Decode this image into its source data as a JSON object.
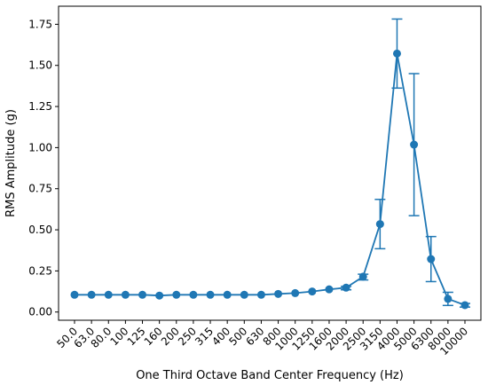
{
  "chart_data": {
    "type": "line",
    "title": "",
    "xlabel": "One Third Octave Band Center Frequency (Hz)",
    "ylabel": "RMS Amplitude (g)",
    "categories": [
      "50.0",
      "63.0",
      "80.0",
      "100",
      "125",
      "160",
      "200",
      "250",
      "315",
      "400",
      "500",
      "630",
      "800",
      "1000",
      "1250",
      "1600",
      "2000",
      "2500",
      "3150",
      "4000",
      "5000",
      "6300",
      "8000",
      "10000"
    ],
    "y_ticks": [
      "0.00",
      "0.25",
      "0.50",
      "0.75",
      "1.00",
      "1.25",
      "1.50",
      "1.75"
    ],
    "ylim": [
      -0.05,
      1.86
    ],
    "grid": false,
    "legend": "none",
    "color": "#1f77b4",
    "series": [
      {
        "values": [
          0.105,
          0.105,
          0.105,
          0.105,
          0.105,
          0.1,
          0.105,
          0.105,
          0.105,
          0.105,
          0.105,
          0.105,
          0.11,
          0.115,
          0.125,
          0.138,
          0.148,
          0.215,
          0.535,
          1.572,
          1.018,
          0.322,
          0.08,
          0.042
        ],
        "error_low": [
          0,
          0,
          0,
          0,
          0,
          0,
          0,
          0,
          0,
          0,
          0,
          0,
          0,
          0,
          0,
          0,
          0.013,
          0.02,
          0.15,
          0.21,
          0.432,
          0.137,
          0.04,
          0.012
        ],
        "error_high": [
          0,
          0,
          0,
          0,
          0,
          0,
          0,
          0,
          0,
          0,
          0,
          0,
          0,
          0,
          0,
          0,
          0.008,
          0.015,
          0.15,
          0.21,
          0.432,
          0.137,
          0.04,
          0.01
        ]
      }
    ]
  }
}
